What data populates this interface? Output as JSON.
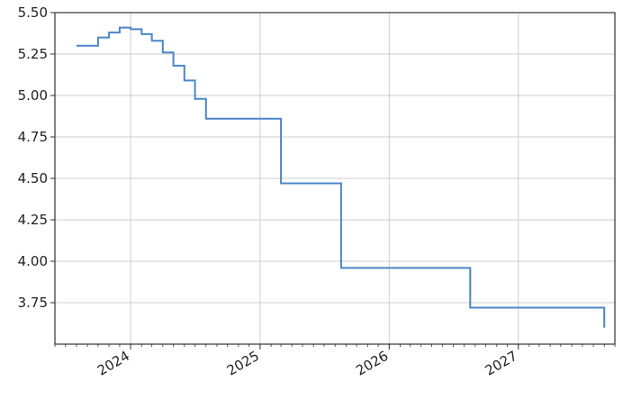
{
  "chart_data": {
    "type": "line",
    "title": "",
    "xlabel": "",
    "ylabel": "",
    "step": true,
    "grid": true,
    "line_color": "#4a86c8",
    "xlim": [
      "2023-06-01",
      "2027-10-01"
    ],
    "ylim": [
      3.5,
      5.5
    ],
    "y_ticks": [
      "5.50",
      "5.25",
      "5.00",
      "4.75",
      "4.50",
      "4.25",
      "4.00",
      "3.75"
    ],
    "x_ticks": [
      "2024",
      "2025",
      "2026",
      "2027"
    ],
    "series": [
      {
        "x": [
          "2023-08-01",
          "2023-09-01",
          "2023-10-01",
          "2023-11-01",
          "2023-12-01",
          "2024-01-01",
          "2024-02-01",
          "2024-03-01",
          "2024-04-01",
          "2024-05-01",
          "2024-06-01",
          "2024-07-01",
          "2024-08-01",
          "2025-03-01",
          "2025-08-18",
          "2026-08-18",
          "2027-09-01"
        ],
        "y": [
          5.3,
          5.3,
          5.35,
          5.38,
          5.41,
          5.4,
          5.37,
          5.33,
          5.26,
          5.18,
          5.09,
          4.98,
          4.86,
          4.47,
          3.96,
          3.72,
          3.6
        ]
      }
    ]
  }
}
